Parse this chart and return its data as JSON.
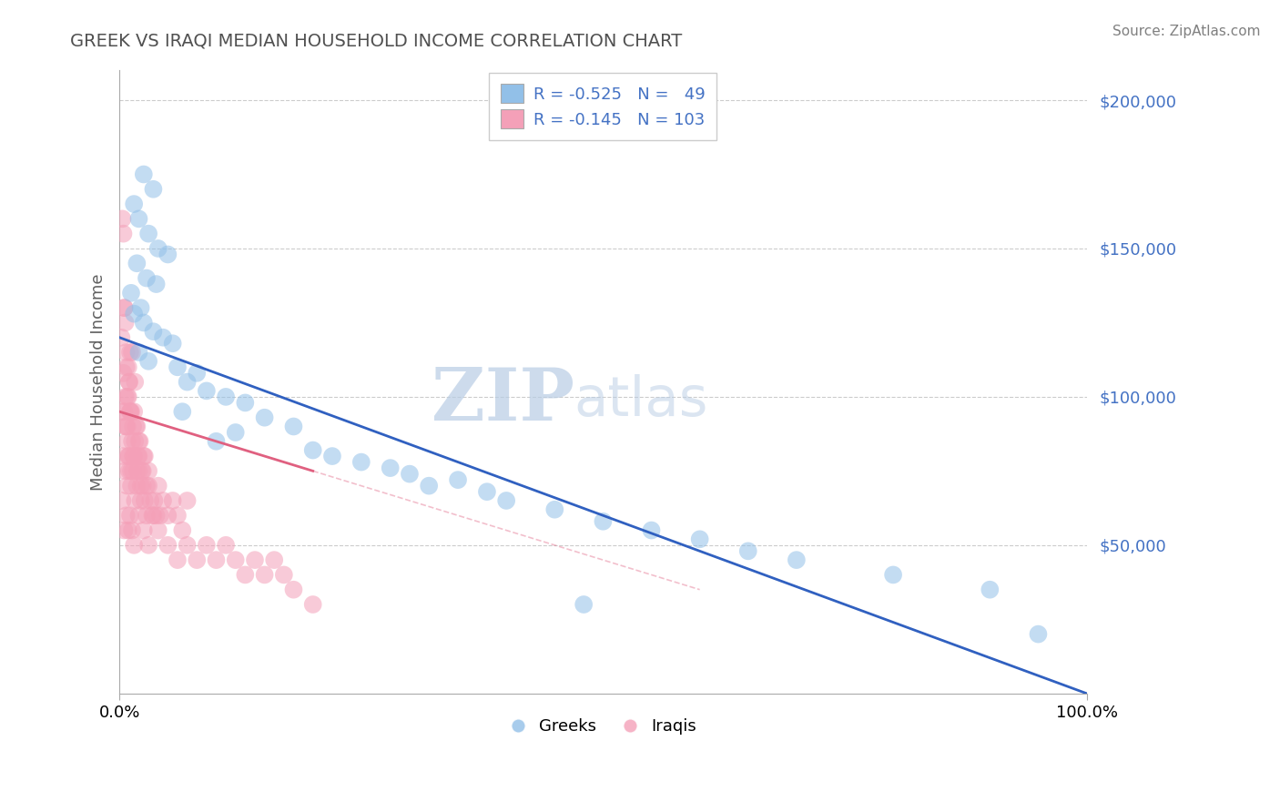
{
  "title": "GREEK VS IRAQI MEDIAN HOUSEHOLD INCOME CORRELATION CHART",
  "source_text": "Source: ZipAtlas.com",
  "ylabel": "Median Household Income",
  "xlim": [
    0,
    100
  ],
  "ylim": [
    0,
    210000
  ],
  "yticks": [
    0,
    50000,
    100000,
    150000,
    200000
  ],
  "ytick_labels": [
    "",
    "$50,000",
    "$100,000",
    "$150,000",
    "$200,000"
  ],
  "xtick_labels": [
    "0.0%",
    "100.0%"
  ],
  "watermark_zip": "ZIP",
  "watermark_atlas": "atlas",
  "legend_r1": "-0.525",
  "legend_n1": "49",
  "legend_r2": "-0.145",
  "legend_n2": "103",
  "greek_label": "Greeks",
  "iraqi_label": "Iraqis",
  "blue_color": "#92C0E8",
  "pink_color": "#F4A0B8",
  "blue_line_color": "#3060C0",
  "pink_line_color": "#E06080",
  "title_color": "#505050",
  "axis_label_color": "#606060",
  "tick_color": "#4472C4",
  "source_color": "#808080",
  "background_color": "#FFFFFF",
  "greek_x": [
    2.5,
    3.5,
    1.5,
    2.0,
    3.0,
    4.0,
    5.0,
    1.8,
    2.8,
    3.8,
    1.2,
    2.2,
    1.5,
    2.5,
    3.5,
    4.5,
    5.5,
    2.0,
    3.0,
    6.0,
    8.0,
    7.0,
    9.0,
    11.0,
    13.0,
    6.5,
    15.0,
    18.0,
    12.0,
    10.0,
    20.0,
    22.0,
    25.0,
    28.0,
    30.0,
    35.0,
    32.0,
    38.0,
    40.0,
    45.0,
    50.0,
    55.0,
    60.0,
    65.0,
    70.0,
    80.0,
    90.0,
    48.0,
    95.0
  ],
  "greek_y": [
    175000,
    170000,
    165000,
    160000,
    155000,
    150000,
    148000,
    145000,
    140000,
    138000,
    135000,
    130000,
    128000,
    125000,
    122000,
    120000,
    118000,
    115000,
    112000,
    110000,
    108000,
    105000,
    102000,
    100000,
    98000,
    95000,
    93000,
    90000,
    88000,
    85000,
    82000,
    80000,
    78000,
    76000,
    74000,
    72000,
    70000,
    68000,
    65000,
    62000,
    58000,
    55000,
    52000,
    48000,
    45000,
    40000,
    35000,
    30000,
    20000
  ],
  "iraqi_x": [
    0.2,
    0.3,
    0.4,
    0.5,
    0.6,
    0.7,
    0.8,
    0.9,
    1.0,
    1.1,
    0.3,
    0.5,
    0.7,
    0.9,
    1.1,
    1.3,
    1.5,
    0.4,
    0.6,
    0.8,
    1.0,
    1.2,
    1.4,
    1.6,
    1.8,
    2.0,
    0.5,
    0.7,
    0.9,
    1.1,
    1.3,
    1.5,
    1.7,
    1.9,
    2.1,
    2.3,
    2.5,
    0.6,
    0.8,
    1.0,
    1.2,
    1.4,
    1.6,
    1.8,
    2.0,
    2.2,
    2.4,
    2.6,
    2.8,
    3.0,
    0.4,
    0.6,
    0.8,
    1.0,
    1.2,
    1.4,
    1.6,
    1.8,
    2.0,
    2.2,
    2.4,
    2.6,
    2.8,
    3.0,
    3.2,
    3.4,
    3.6,
    3.8,
    4.0,
    4.2,
    4.5,
    5.0,
    5.5,
    6.0,
    6.5,
    7.0,
    0.3,
    0.5,
    0.7,
    0.9,
    1.1,
    1.3,
    1.5,
    2.0,
    2.5,
    3.0,
    3.5,
    4.0,
    5.0,
    6.0,
    7.0,
    8.0,
    9.0,
    10.0,
    11.0,
    12.0,
    13.0,
    14.0,
    15.0,
    16.0,
    17.0,
    18.0,
    20.0
  ],
  "iraqi_y": [
    120000,
    160000,
    155000,
    130000,
    125000,
    115000,
    100000,
    110000,
    105000,
    115000,
    95000,
    130000,
    110000,
    100000,
    95000,
    115000,
    95000,
    108000,
    100000,
    90000,
    105000,
    95000,
    90000,
    105000,
    90000,
    85000,
    95000,
    90000,
    80000,
    95000,
    85000,
    80000,
    90000,
    80000,
    85000,
    75000,
    80000,
    90000,
    85000,
    80000,
    75000,
    80000,
    85000,
    75000,
    80000,
    70000,
    75000,
    80000,
    70000,
    75000,
    80000,
    75000,
    70000,
    75000,
    70000,
    75000,
    65000,
    70000,
    75000,
    65000,
    70000,
    65000,
    60000,
    70000,
    65000,
    60000,
    65000,
    60000,
    70000,
    60000,
    65000,
    60000,
    65000,
    60000,
    55000,
    65000,
    65000,
    55000,
    60000,
    55000,
    60000,
    55000,
    50000,
    60000,
    55000,
    50000,
    60000,
    55000,
    50000,
    45000,
    50000,
    45000,
    50000,
    45000,
    50000,
    45000,
    40000,
    45000,
    40000,
    45000,
    40000,
    35000,
    30000
  ],
  "blue_line_x0": 0,
  "blue_line_y0": 120000,
  "blue_line_x1": 100,
  "blue_line_y1": 0,
  "pink_line_x0": 0,
  "pink_line_y0": 95000,
  "pink_line_x1": 20,
  "pink_line_y1": 75000,
  "pink_dash_x0": 20,
  "pink_dash_y0": 75000,
  "pink_dash_x1": 60,
  "pink_dash_y1": 35000
}
